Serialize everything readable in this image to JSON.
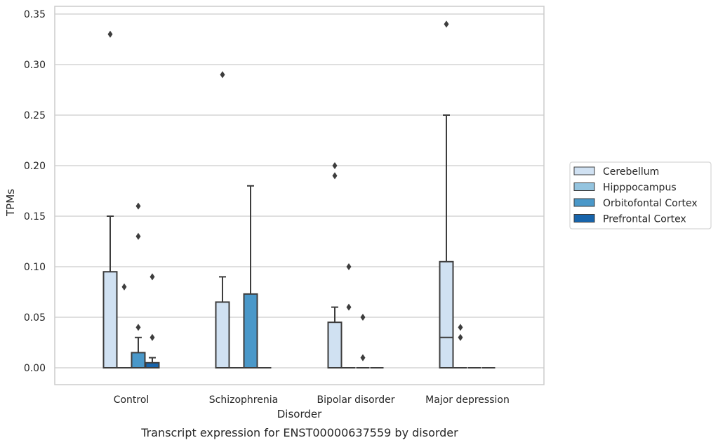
{
  "chart_data": {
    "type": "box",
    "caption": "Transcript expression for ENST00000637559 by disorder",
    "xlabel": "Disorder",
    "ylabel": "TPMs",
    "ylim": [
      -0.017,
      0.356
    ],
    "yticks": [
      "0.00",
      "0.05",
      "0.10",
      "0.15",
      "0.20",
      "0.25",
      "0.30",
      "0.35"
    ],
    "ytick_values": [
      0,
      0.05,
      0.1,
      0.15,
      0.2,
      0.25,
      0.3,
      0.35
    ],
    "grid": "horizontal",
    "legend_position": "right",
    "categories": [
      "Control",
      "Schizophrenia",
      "Bipolar disorder",
      "Major depression"
    ],
    "series": [
      {
        "name": "Cerebellum",
        "color": "#d0e1f2",
        "boxes": [
          {
            "q1": 0,
            "median": 0,
            "q3": 0.095,
            "whisker_low": 0,
            "whisker_high": 0.15,
            "outliers": [
              0.33
            ]
          },
          {
            "q1": 0,
            "median": 0,
            "q3": 0.065,
            "whisker_low": 0,
            "whisker_high": 0.09,
            "outliers": [
              0.29
            ]
          },
          {
            "q1": 0,
            "median": 0,
            "q3": 0.045,
            "whisker_low": 0,
            "whisker_high": 0.06,
            "outliers": [
              0.19,
              0.2
            ]
          },
          {
            "q1": 0,
            "median": 0.03,
            "q3": 0.105,
            "whisker_low": 0,
            "whisker_high": 0.25,
            "outliers": [
              0.34
            ]
          }
        ]
      },
      {
        "name": "Hipppocampus",
        "color": "#94c4df",
        "boxes": [
          {
            "q1": 0,
            "median": 0,
            "q3": 0,
            "whisker_low": 0,
            "whisker_high": 0,
            "outliers": [
              0.08
            ]
          },
          {
            "q1": 0,
            "median": 0,
            "q3": 0,
            "whisker_low": 0,
            "whisker_high": 0,
            "outliers": []
          },
          {
            "q1": 0,
            "median": 0,
            "q3": 0,
            "whisker_low": 0,
            "whisker_high": 0,
            "outliers": [
              0.06,
              0.1
            ]
          },
          {
            "q1": 0,
            "median": 0,
            "q3": 0,
            "whisker_low": 0,
            "whisker_high": 0,
            "outliers": [
              0.03,
              0.04
            ]
          }
        ]
      },
      {
        "name": "Orbitofontal Cortex",
        "color": "#4a98c9",
        "boxes": [
          {
            "q1": 0,
            "median": 0,
            "q3": 0.015,
            "whisker_low": 0,
            "whisker_high": 0.03,
            "outliers": [
              0.04,
              0.13,
              0.16
            ]
          },
          {
            "q1": 0,
            "median": 0,
            "q3": 0.073,
            "whisker_low": 0,
            "whisker_high": 0.18,
            "outliers": []
          },
          {
            "q1": 0,
            "median": 0,
            "q3": 0,
            "whisker_low": 0,
            "whisker_high": 0,
            "outliers": [
              0.01,
              0.05
            ]
          },
          {
            "q1": 0,
            "median": 0,
            "q3": 0,
            "whisker_low": 0,
            "whisker_high": 0,
            "outliers": []
          }
        ]
      },
      {
        "name": "Prefrontal Cortex",
        "color": "#1764ab",
        "boxes": [
          {
            "q1": 0,
            "median": 0,
            "q3": 0.005,
            "whisker_low": 0,
            "whisker_high": 0.01,
            "outliers": [
              0.03,
              0.09
            ]
          },
          {
            "q1": 0,
            "median": 0,
            "q3": 0,
            "whisker_low": 0,
            "whisker_high": 0,
            "outliers": []
          },
          {
            "q1": 0,
            "median": 0,
            "q3": 0,
            "whisker_low": 0,
            "whisker_high": 0,
            "outliers": []
          },
          {
            "q1": 0,
            "median": 0,
            "q3": 0,
            "whisker_low": 0,
            "whisker_high": 0,
            "outliers": []
          }
        ]
      }
    ],
    "colors": {
      "axes_edge": "#cccccc",
      "grid": "#cccccc",
      "box_edge": "#3d3d3d",
      "text": "#262626"
    }
  }
}
